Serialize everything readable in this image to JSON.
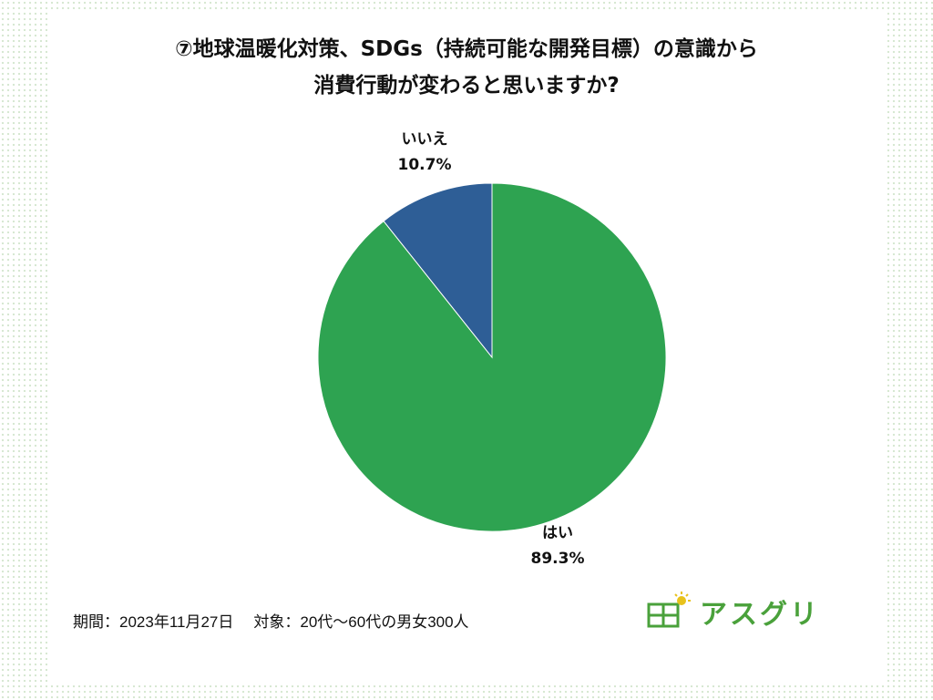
{
  "title": {
    "line1": "⑦地球温暖化対策、SDGs（持続可能な開発目標）の意識から",
    "line2": "消費行動が変わると思いますか?"
  },
  "chart_data": {
    "type": "pie",
    "title": "⑦地球温暖化対策、SDGs（持続可能な開発目標）の意識から消費行動が変わると思いますか?",
    "slices": [
      {
        "label": "はい",
        "value": 89.3,
        "value_label": "89.3%",
        "color": "#2ea351"
      },
      {
        "label": "いいえ",
        "value": 10.7,
        "value_label": "10.7%",
        "color": "#2e5e96"
      }
    ]
  },
  "footer": {
    "period": "期間：2023年11月27日",
    "target": "対象：20代～60代の男女300人"
  },
  "logo": {
    "text": "アスグリ",
    "color": "#4aa13b"
  }
}
